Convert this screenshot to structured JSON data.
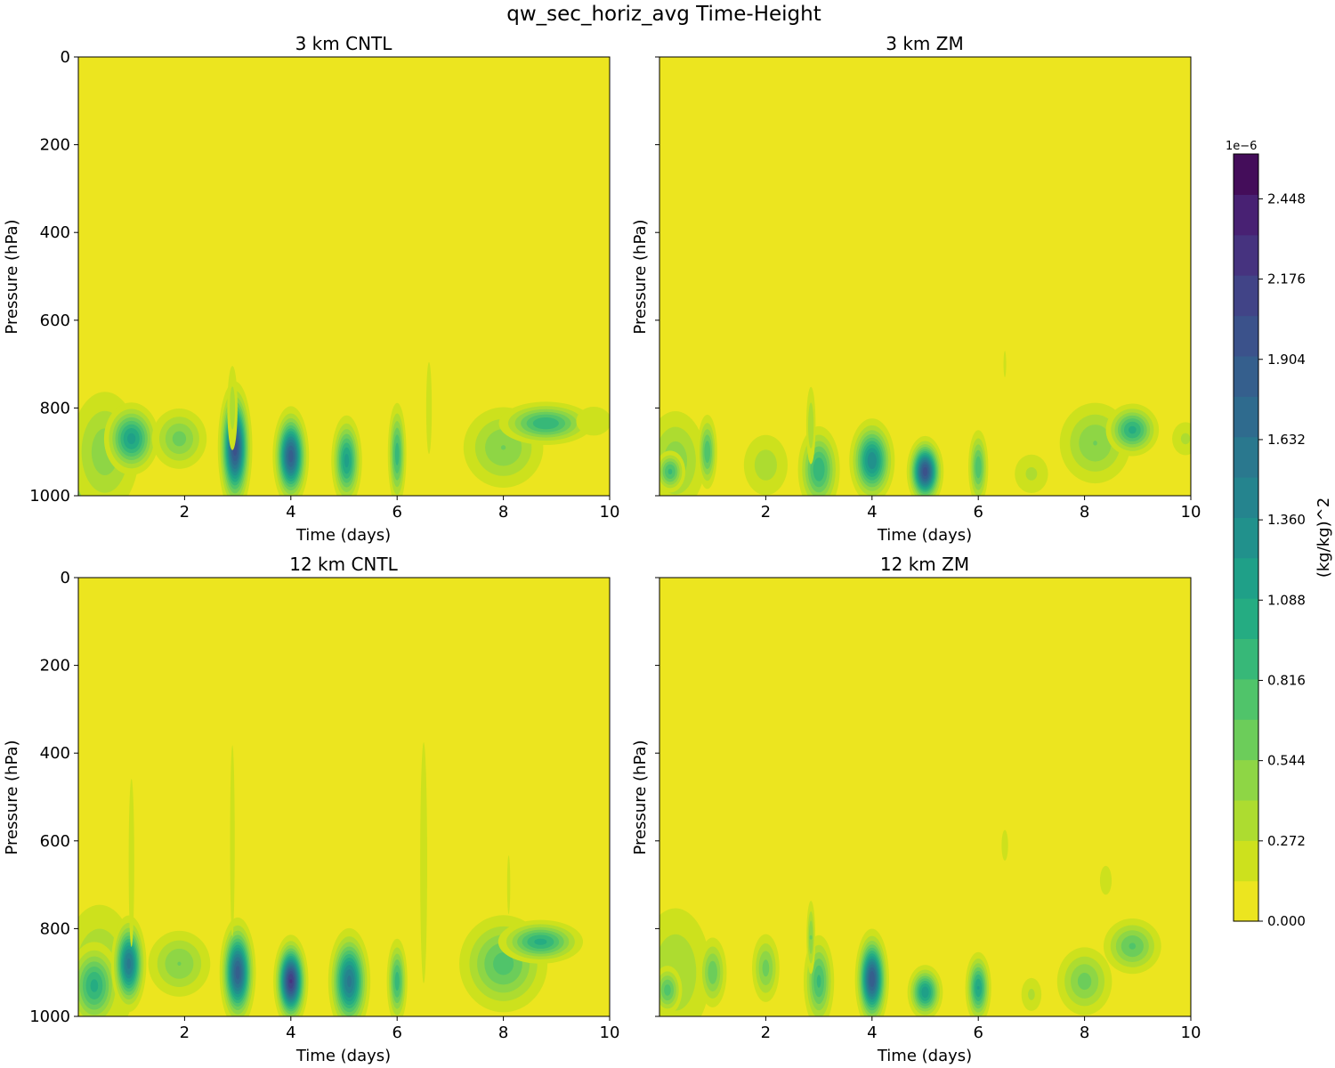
{
  "chart_data": {
    "type": "heatmap",
    "title": "qw_sec_horiz_avg Time-Height",
    "panels": [
      {
        "title": "3 km CNTL",
        "xlabel": "Time (days)",
        "ylabel": "Pressure (hPa)",
        "xlim": [
          0,
          10
        ],
        "ylim": [
          1000,
          0
        ],
        "xticks": [
          2,
          4,
          6,
          8,
          10
        ],
        "yticks": [
          0,
          200,
          400,
          600,
          800,
          1000
        ],
        "y_tick_labels_shown": true,
        "features": [
          {
            "t": 0.2,
            "p": 930,
            "dt": 0.35,
            "dp": 55,
            "v": 1.0
          },
          {
            "t": 0.5,
            "p": 900,
            "dt": 0.4,
            "dp": 85,
            "v": 0.5
          },
          {
            "t": 1.0,
            "p": 870,
            "dt": 0.25,
            "dp": 40,
            "v": 1.15
          },
          {
            "t": 1.9,
            "p": 870,
            "dt": 0.3,
            "dp": 40,
            "v": 0.6
          },
          {
            "t": 2.95,
            "p": 890,
            "dt": 0.14,
            "dp": 65,
            "v": 2.0
          },
          {
            "t": 2.9,
            "p": 800,
            "dt": 0.07,
            "dp": 70,
            "v": 0.35
          },
          {
            "t": 4.0,
            "p": 910,
            "dt": 0.15,
            "dp": 50,
            "v": 1.85
          },
          {
            "t": 5.05,
            "p": 920,
            "dt": 0.14,
            "dp": 50,
            "v": 1.15
          },
          {
            "t": 6.0,
            "p": 905,
            "dt": 0.09,
            "dp": 60,
            "v": 0.9
          },
          {
            "t": 6.6,
            "p": 800,
            "dt": 0.06,
            "dp": 120,
            "v": 0.2
          },
          {
            "t": 8.0,
            "p": 890,
            "dt": 0.45,
            "dp": 55,
            "v": 0.55
          },
          {
            "t": 8.8,
            "p": 835,
            "dt": 0.45,
            "dp": 25,
            "v": 0.95
          },
          {
            "t": 9.7,
            "p": 830,
            "dt": 0.3,
            "dp": 30,
            "v": 0.25
          }
        ]
      },
      {
        "title": "3 km ZM",
        "xlabel": "Time (days)",
        "ylabel": "Pressure (hPa)",
        "xlim": [
          0,
          10
        ],
        "ylim": [
          1000,
          0
        ],
        "xticks": [
          2,
          4,
          6,
          8,
          10
        ],
        "yticks": [
          0,
          200,
          400,
          600,
          800,
          1000
        ],
        "y_tick_labels_shown": false,
        "features": [
          {
            "t": 0.3,
            "p": 920,
            "dt": 0.35,
            "dp": 70,
            "v": 0.5
          },
          {
            "t": 0.2,
            "p": 945,
            "dt": 0.15,
            "dp": 25,
            "v": 0.85
          },
          {
            "t": 0.9,
            "p": 900,
            "dt": 0.1,
            "dp": 45,
            "v": 0.8
          },
          {
            "t": 2.0,
            "p": 930,
            "dt": 0.3,
            "dp": 50,
            "v": 0.35
          },
          {
            "t": 3.0,
            "p": 940,
            "dt": 0.2,
            "dp": 50,
            "v": 0.95
          },
          {
            "t": 2.85,
            "p": 840,
            "dt": 0.06,
            "dp": 60,
            "v": 0.4
          },
          {
            "t": 4.0,
            "p": 920,
            "dt": 0.2,
            "dp": 45,
            "v": 1.35
          },
          {
            "t": 5.0,
            "p": 945,
            "dt": 0.15,
            "dp": 35,
            "v": 2.0
          },
          {
            "t": 6.0,
            "p": 935,
            "dt": 0.1,
            "dp": 45,
            "v": 0.8
          },
          {
            "t": 6.5,
            "p": 700,
            "dt": 0.05,
            "dp": 70,
            "v": 0.15
          },
          {
            "t": 7.0,
            "p": 950,
            "dt": 0.25,
            "dp": 35,
            "v": 0.3
          },
          {
            "t": 8.2,
            "p": 880,
            "dt": 0.4,
            "dp": 55,
            "v": 0.55
          },
          {
            "t": 8.9,
            "p": 850,
            "dt": 0.25,
            "dp": 30,
            "v": 1.0
          },
          {
            "t": 9.9,
            "p": 870,
            "dt": 0.2,
            "dp": 30,
            "v": 0.3
          }
        ]
      },
      {
        "title": "12 km CNTL",
        "xlabel": "Time (days)",
        "ylabel": "Pressure (hPa)",
        "xlim": [
          0,
          10
        ],
        "ylim": [
          1000,
          0
        ],
        "xticks": [
          2,
          4,
          6,
          8,
          10
        ],
        "yticks": [
          0,
          200,
          400,
          600,
          800,
          1000
        ],
        "y_tick_labels_shown": true,
        "features": [
          {
            "t": 0.4,
            "p": 900,
            "dt": 0.45,
            "dp": 100,
            "v": 0.45
          },
          {
            "t": 0.3,
            "p": 930,
            "dt": 0.25,
            "dp": 50,
            "v": 1.0
          },
          {
            "t": 0.95,
            "p": 880,
            "dt": 0.15,
            "dp": 50,
            "v": 1.55
          },
          {
            "t": 1.0,
            "p": 650,
            "dt": 0.06,
            "dp": 220,
            "v": 0.2
          },
          {
            "t": 1.9,
            "p": 880,
            "dt": 0.35,
            "dp": 45,
            "v": 0.55
          },
          {
            "t": 3.0,
            "p": 900,
            "dt": 0.15,
            "dp": 55,
            "v": 1.85
          },
          {
            "t": 2.9,
            "p": 600,
            "dt": 0.05,
            "dp": 250,
            "v": 0.2
          },
          {
            "t": 4.0,
            "p": 920,
            "dt": 0.14,
            "dp": 45,
            "v": 2.2
          },
          {
            "t": 5.1,
            "p": 920,
            "dt": 0.18,
            "dp": 55,
            "v": 1.55
          },
          {
            "t": 6.0,
            "p": 920,
            "dt": 0.1,
            "dp": 50,
            "v": 0.9
          },
          {
            "t": 6.5,
            "p": 650,
            "dt": 0.06,
            "dp": 250,
            "v": 0.25
          },
          {
            "t": 8.0,
            "p": 880,
            "dt": 0.45,
            "dp": 60,
            "v": 0.75
          },
          {
            "t": 8.7,
            "p": 830,
            "dt": 0.4,
            "dp": 25,
            "v": 1.0
          },
          {
            "t": 8.1,
            "p": 700,
            "dt": 0.04,
            "dp": 90,
            "v": 0.18
          }
        ]
      },
      {
        "title": "12 km ZM",
        "xlabel": "Time (days)",
        "ylabel": "Pressure (hPa)",
        "xlim": [
          0,
          10
        ],
        "ylim": [
          1000,
          0
        ],
        "xticks": [
          2,
          4,
          6,
          8,
          10
        ],
        "yticks": [
          0,
          200,
          400,
          600,
          800,
          1000
        ],
        "y_tick_labels_shown": false,
        "features": [
          {
            "t": 0.3,
            "p": 900,
            "dt": 0.45,
            "dp": 100,
            "v": 0.4
          },
          {
            "t": 0.15,
            "p": 940,
            "dt": 0.15,
            "dp": 30,
            "v": 0.75
          },
          {
            "t": 1.0,
            "p": 900,
            "dt": 0.15,
            "dp": 45,
            "v": 0.65
          },
          {
            "t": 2.0,
            "p": 890,
            "dt": 0.15,
            "dp": 45,
            "v": 0.6
          },
          {
            "t": 3.0,
            "p": 920,
            "dt": 0.15,
            "dp": 55,
            "v": 0.85
          },
          {
            "t": 2.85,
            "p": 820,
            "dt": 0.05,
            "dp": 50,
            "v": 0.55
          },
          {
            "t": 4.0,
            "p": 915,
            "dt": 0.14,
            "dp": 50,
            "v": 1.9
          },
          {
            "t": 5.0,
            "p": 945,
            "dt": 0.16,
            "dp": 30,
            "v": 1.2
          },
          {
            "t": 6.0,
            "p": 935,
            "dt": 0.12,
            "dp": 40,
            "v": 1.1
          },
          {
            "t": 6.5,
            "p": 610,
            "dt": 0.07,
            "dp": 40,
            "v": 0.2
          },
          {
            "t": 7.0,
            "p": 950,
            "dt": 0.15,
            "dp": 30,
            "v": 0.3
          },
          {
            "t": 8.0,
            "p": 920,
            "dt": 0.3,
            "dp": 45,
            "v": 0.6
          },
          {
            "t": 8.9,
            "p": 840,
            "dt": 0.3,
            "dp": 35,
            "v": 0.7
          },
          {
            "t": 8.4,
            "p": 690,
            "dt": 0.1,
            "dp": 30,
            "v": 0.25
          }
        ]
      }
    ],
    "colorbar": {
      "label": "(kg/kg)^2",
      "offset_text": "1e−6",
      "tick_labels": [
        "0.000",
        "0.272",
        "0.544",
        "0.816",
        "1.088",
        "1.360",
        "1.632",
        "1.904",
        "2.176",
        "2.448"
      ],
      "min": 0,
      "max": 2.6,
      "levels": 19,
      "colors": [
        "#ece51f",
        "#cde11d",
        "#addc30",
        "#8ed645",
        "#6ccd5a",
        "#50c46a",
        "#37b878",
        "#25ac82",
        "#1fa088",
        "#21918c",
        "#25848e",
        "#2a788e",
        "#2f6b8e",
        "#355f8d",
        "#3b528b",
        "#414487",
        "#46337f",
        "#482173",
        "#440d5a"
      ]
    }
  }
}
